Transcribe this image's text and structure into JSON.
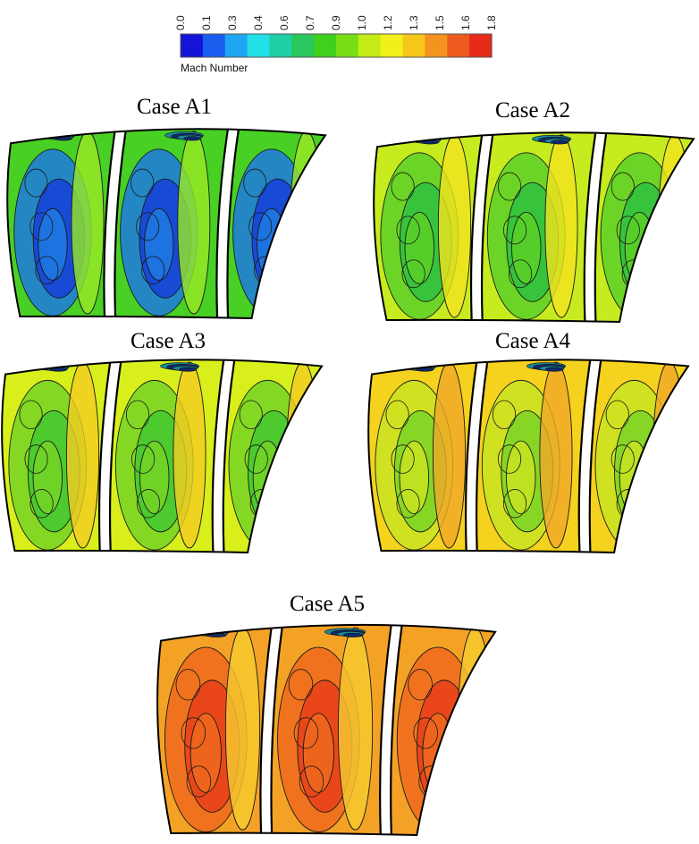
{
  "legend": {
    "title": "Mach Number",
    "ticks": [
      "0.0",
      "0.1",
      "0.3",
      "0.4",
      "0.6",
      "0.7",
      "0.9",
      "1.0",
      "1.2",
      "1.3",
      "1.5",
      "1.6",
      "1.8"
    ],
    "colors": [
      "#1414d8",
      "#1a5ef0",
      "#1fa6f2",
      "#22e0e6",
      "#1fd0a6",
      "#2ac85c",
      "#3fd01e",
      "#7ade16",
      "#c6ec18",
      "#f2f01a",
      "#f7c61a",
      "#f49320",
      "#ee5a1e",
      "#e82a18"
    ]
  },
  "cases": [
    {
      "title": "Case A1",
      "base": "#48d024",
      "spot": "#1f7ae0",
      "core": "#1540d8",
      "edge": "#9ae826"
    },
    {
      "title": "Case A2",
      "base": "#c6ec20",
      "spot": "#5ad028",
      "core": "#2ec040",
      "edge": "#f2e41e"
    },
    {
      "title": "Case A3",
      "base": "#d8ef1c",
      "spot": "#76d426",
      "core": "#42c830",
      "edge": "#f4cc22"
    },
    {
      "title": "Case A4",
      "base": "#f4d21e",
      "spot": "#c8e422",
      "core": "#7ad426",
      "edge": "#f0a828"
    },
    {
      "title": "Case A5",
      "base": "#f4a226",
      "spot": "#ee6a1e",
      "core": "#e8401a",
      "edge": "#f6cc30"
    }
  ]
}
